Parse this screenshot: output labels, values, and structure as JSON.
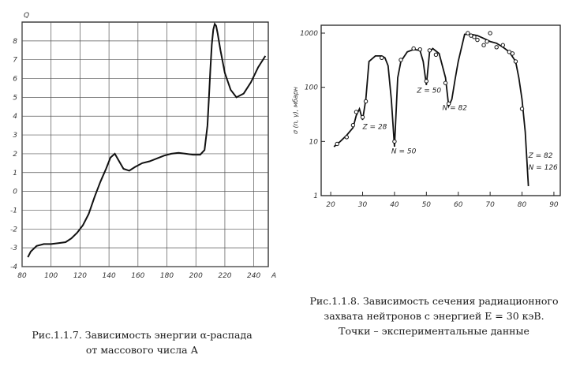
{
  "chart_data": [
    {
      "type": "line",
      "caption": [
        "Рис.1.1.7. Зависимость энергии α-распада",
        "от массового числа А"
      ],
      "ylabel": "Q",
      "xlabel": "A",
      "xlim": [
        80,
        250
      ],
      "ylim": [
        -4,
        9
      ],
      "xticks": [
        80,
        100,
        120,
        140,
        160,
        180,
        200,
        220,
        240
      ],
      "yticks": [
        -4,
        -3,
        -2,
        -1,
        0,
        1,
        2,
        3,
        4,
        5,
        6,
        7,
        8
      ],
      "grid": true,
      "series": [
        {
          "x": [
            84,
            86,
            90,
            95,
            100,
            105,
            110,
            114,
            118,
            122,
            126,
            130,
            134,
            138,
            141,
            144,
            147,
            150,
            154,
            158,
            163,
            168,
            173,
            178,
            183,
            188,
            193,
            198,
            203,
            206,
            208,
            209,
            210,
            211,
            212,
            213,
            214,
            215,
            217,
            220,
            224,
            228,
            233,
            238,
            243,
            248
          ],
          "y": [
            -3.5,
            -3.2,
            -2.9,
            -2.8,
            -2.8,
            -2.75,
            -2.7,
            -2.5,
            -2.2,
            -1.8,
            -1.2,
            -0.3,
            0.5,
            1.2,
            1.8,
            2.0,
            1.6,
            1.2,
            1.1,
            1.3,
            1.5,
            1.6,
            1.75,
            1.9,
            2.0,
            2.05,
            2.0,
            1.95,
            1.95,
            2.2,
            3.5,
            5.0,
            6.5,
            7.8,
            8.6,
            8.9,
            8.8,
            8.4,
            7.5,
            6.3,
            5.4,
            5.0,
            5.2,
            5.8,
            6.6,
            7.2
          ]
        }
      ]
    },
    {
      "type": "line",
      "caption": [
        "Рис.1.1.8. Зависимость сечения радиационного",
        "захвата нейтронов с энергией E = 30 кэВ.",
        "Точки – экспериментальные данные"
      ],
      "ylabel": "σ (n, γ), мбарн",
      "xlabel": "",
      "xlim": [
        17,
        92
      ],
      "ylim_log": [
        1,
        1000
      ],
      "xticks": [
        20,
        30,
        40,
        50,
        60,
        70,
        80,
        90
      ],
      "yticks": [
        {
          "value": 1,
          "label": "1"
        },
        {
          "value": 10,
          "label": "10"
        },
        {
          "value": 100,
          "label": "100"
        },
        {
          "value": 1000,
          "label": "1000"
        }
      ],
      "annotations": [
        {
          "text": "Z = 28",
          "x": 30,
          "y": 17
        },
        {
          "text": "N = 50",
          "x": 39,
          "y": 6
        },
        {
          "text": "Z = 50",
          "x": 47,
          "y": 80
        },
        {
          "text": "N = 82",
          "x": 55,
          "y": 38
        },
        {
          "text": "Z = 82",
          "x": 82,
          "y": 5
        },
        {
          "text": "N = 126",
          "x": 82,
          "y": 3
        }
      ],
      "series": [
        {
          "name": "fit",
          "x": [
            21,
            23,
            25,
            27,
            28,
            29,
            30,
            31,
            32,
            34,
            36,
            37,
            38,
            39,
            40,
            41,
            42,
            44,
            46,
            48,
            49,
            50,
            51,
            52,
            54,
            56,
            57,
            58,
            59,
            60,
            62,
            64,
            66,
            68,
            70,
            72,
            74,
            76,
            78,
            79,
            80,
            81,
            82
          ],
          "y": [
            8,
            10,
            13,
            18,
            30,
            40,
            25,
            60,
            300,
            380,
            380,
            350,
            250,
            60,
            8,
            150,
            300,
            450,
            500,
            480,
            300,
            110,
            450,
            520,
            420,
            150,
            45,
            60,
            140,
            300,
            950,
            950,
            900,
            800,
            700,
            650,
            550,
            450,
            300,
            150,
            60,
            15,
            1.5
          ]
        },
        {
          "name": "experimental",
          "x": [
            22,
            25,
            27,
            28,
            30,
            31,
            36,
            40,
            42,
            46,
            48,
            50,
            51,
            53,
            56,
            57,
            63,
            64,
            65,
            66,
            68,
            69,
            70,
            72,
            74,
            76,
            77,
            78,
            80
          ],
          "y": [
            9,
            12,
            20,
            35,
            28,
            55,
            350,
            10,
            320,
            520,
            500,
            130,
            480,
            400,
            120,
            50,
            1000,
            900,
            850,
            750,
            600,
            700,
            1500,
            550,
            600,
            450,
            420,
            300,
            40
          ]
        }
      ]
    }
  ]
}
